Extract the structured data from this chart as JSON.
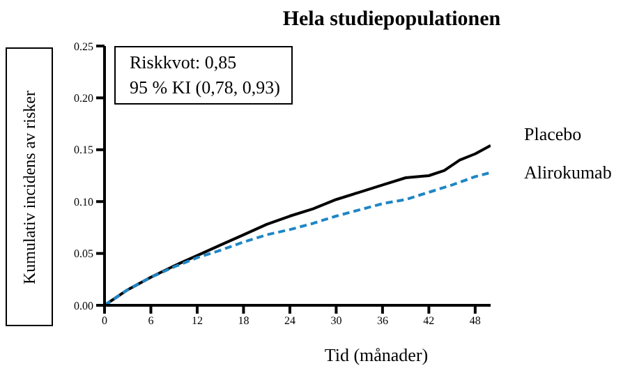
{
  "chart_data": {
    "type": "line",
    "title": "Hela studiepopulationen",
    "xlabel": "Tid (månader)",
    "ylabel": "Kumulativ incidens av risker",
    "annotations": [
      "Riskkvot: 0,85",
      "95 % KI (0,78, 0,93)"
    ],
    "series": [
      {
        "name": "Placebo",
        "color": "#000000",
        "line_style": "solid",
        "x": [
          0,
          3,
          6,
          9,
          12,
          15,
          18,
          21,
          24,
          27,
          30,
          33,
          36,
          39,
          42,
          44,
          46,
          48,
          50
        ],
        "values": [
          0,
          0.015,
          0.027,
          0.038,
          0.048,
          0.058,
          0.068,
          0.078,
          0.086,
          0.093,
          0.102,
          0.109,
          0.116,
          0.123,
          0.125,
          0.13,
          0.14,
          0.146,
          0.154
        ]
      },
      {
        "name": "Alirokumab",
        "color": "#1f86c4",
        "line_style": "dashed",
        "x": [
          0,
          3,
          6,
          9,
          12,
          15,
          18,
          21,
          24,
          27,
          30,
          33,
          36,
          39,
          42,
          45,
          48,
          50
        ],
        "values": [
          0,
          0.015,
          0.027,
          0.037,
          0.046,
          0.053,
          0.061,
          0.068,
          0.073,
          0.079,
          0.086,
          0.092,
          0.098,
          0.102,
          0.109,
          0.116,
          0.124,
          0.128
        ]
      }
    ],
    "xlim": [
      0,
      50
    ],
    "xticks": [
      0,
      6,
      12,
      18,
      24,
      30,
      36,
      42,
      48
    ],
    "ylim": [
      0,
      0.25
    ],
    "yticks": [
      {
        "value": 0,
        "label": "0.00"
      },
      {
        "value": 0.05,
        "label": "0.05"
      },
      {
        "value": 0.1,
        "label": "0.10"
      },
      {
        "value": 0.15,
        "label": "0.15"
      },
      {
        "value": 0.2,
        "label": "0.20"
      },
      {
        "value": 0.25,
        "label": "0.25"
      }
    ],
    "grid": false,
    "legend": false,
    "marker": "none"
  }
}
